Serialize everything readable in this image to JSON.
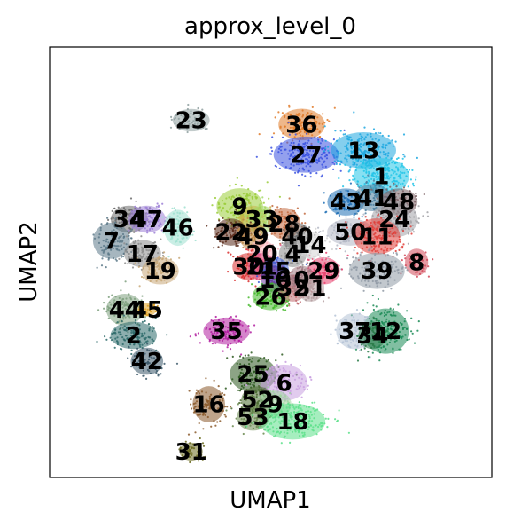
{
  "chart_data": {
    "type": "scatter",
    "title": "approx_level_0",
    "xlabel": "UMAP1",
    "ylabel": "UMAP2",
    "xlim": [
      0,
      100
    ],
    "ylim": [
      0,
      100
    ],
    "ticks": "none",
    "grid": false,
    "legend": "on data",
    "clusters": [
      {
        "label": "23",
        "x": 32,
        "y": 83,
        "color": "#8fa0a0",
        "rx": 4,
        "ry": 2.5,
        "n": 60
      },
      {
        "label": "36",
        "x": 57,
        "y": 82,
        "color": "#e07b2a",
        "rx": 5,
        "ry": 3.5,
        "n": 140
      },
      {
        "label": "27",
        "x": 58,
        "y": 75,
        "color": "#3b52e0",
        "rx": 7,
        "ry": 4,
        "n": 200
      },
      {
        "label": "13",
        "x": 71,
        "y": 76,
        "color": "#1fa8e0",
        "rx": 7,
        "ry": 4,
        "n": 220
      },
      {
        "label": "1",
        "x": 75,
        "y": 70,
        "color": "#25c6e8",
        "rx": 6,
        "ry": 4,
        "n": 220
      },
      {
        "label": "43",
        "x": 67,
        "y": 64,
        "color": "#1f6fb5",
        "rx": 4,
        "ry": 3,
        "n": 90
      },
      {
        "label": "41",
        "x": 73,
        "y": 65,
        "color": "#4d7fa0",
        "rx": 4,
        "ry": 3,
        "n": 90
      },
      {
        "label": "48",
        "x": 79,
        "y": 64,
        "color": "#7a5f63",
        "rx": 4,
        "ry": 3,
        "n": 90
      },
      {
        "label": "24",
        "x": 78,
        "y": 60,
        "color": "#a3a3a8",
        "rx": 5,
        "ry": 4,
        "n": 140
      },
      {
        "label": "50",
        "x": 68,
        "y": 57,
        "color": "#b3b7c4",
        "rx": 5,
        "ry": 3,
        "n": 120
      },
      {
        "label": "11",
        "x": 74,
        "y": 56,
        "color": "#e0403a",
        "rx": 5,
        "ry": 4,
        "n": 170
      },
      {
        "label": "8",
        "x": 83,
        "y": 50,
        "color": "#d24a5a",
        "rx": 2.5,
        "ry": 3,
        "n": 45
      },
      {
        "label": "39",
        "x": 74,
        "y": 48,
        "color": "#909aa6",
        "rx": 6,
        "ry": 4,
        "n": 150
      },
      {
        "label": "29",
        "x": 62,
        "y": 48,
        "color": "#e8426e",
        "rx": 3.5,
        "ry": 3,
        "n": 90
      },
      {
        "label": "12",
        "x": 76,
        "y": 34,
        "color": "#1a8a55",
        "rx": 5,
        "ry": 5,
        "n": 170
      },
      {
        "label": "37",
        "x": 69,
        "y": 34,
        "color": "#b5c3d6",
        "rx": 4,
        "ry": 4,
        "n": 110
      },
      {
        "label": "34",
        "x": 73,
        "y": 33,
        "color": "#2a7a48",
        "rx": 3,
        "ry": 3,
        "n": 70
      },
      {
        "label": "9",
        "x": 43,
        "y": 63,
        "color": "#9acd3a",
        "rx": 5,
        "ry": 4,
        "n": 150
      },
      {
        "label": "3",
        "x": 46,
        "y": 60,
        "color": "#c9b44a",
        "rx": 3,
        "ry": 3,
        "n": 80
      },
      {
        "label": "33",
        "x": 48,
        "y": 60,
        "color": "#a6d96a",
        "rx": 3,
        "ry": 3,
        "n": 80
      },
      {
        "label": "28",
        "x": 53,
        "y": 59,
        "color": "#c26a3f",
        "rx": 3.5,
        "ry": 3.5,
        "n": 110
      },
      {
        "label": "40",
        "x": 56,
        "y": 56,
        "color": "#6c6c6c",
        "rx": 3,
        "ry": 3,
        "n": 80
      },
      {
        "label": "22",
        "x": 41,
        "y": 57,
        "color": "#5a2a1a",
        "rx": 3.5,
        "ry": 3,
        "n": 90
      },
      {
        "label": "49",
        "x": 46,
        "y": 56,
        "color": "#c08a48",
        "rx": 3,
        "ry": 3,
        "n": 80
      },
      {
        "label": "20",
        "x": 48,
        "y": 52,
        "color": "#ffb6c1",
        "rx": 3,
        "ry": 3,
        "n": 80
      },
      {
        "label": "4",
        "x": 55,
        "y": 52,
        "color": "#8b8b8b",
        "rx": 3,
        "ry": 3,
        "n": 80
      },
      {
        "label": "14",
        "x": 59,
        "y": 54,
        "color": "#d4d4d4",
        "rx": 3,
        "ry": 3,
        "n": 80
      },
      {
        "label": "30",
        "x": 45,
        "y": 49,
        "color": "#d92b2b",
        "rx": 3.5,
        "ry": 3,
        "n": 100
      },
      {
        "label": "21",
        "x": 48,
        "y": 49,
        "color": "#e05c8e",
        "rx": 3,
        "ry": 3,
        "n": 80
      },
      {
        "label": "15",
        "x": 51,
        "y": 48,
        "color": "#3d5ed6",
        "rx": 3,
        "ry": 3,
        "n": 80
      },
      {
        "label": "10",
        "x": 51,
        "y": 46,
        "color": "#6a3d9a",
        "rx": 3,
        "ry": 3,
        "n": 80
      },
      {
        "label": "26",
        "x": 50,
        "y": 42,
        "color": "#44b82a",
        "rx": 4,
        "ry": 3,
        "n": 120
      },
      {
        "label": "32",
        "x": 55,
        "y": 44,
        "color": "#c06a70",
        "rx": 3,
        "ry": 3,
        "n": 80
      },
      {
        "label": "0",
        "x": 57,
        "y": 46,
        "color": "#a07a82",
        "rx": 3,
        "ry": 3,
        "n": 80
      },
      {
        "label": "51",
        "x": 59,
        "y": 44,
        "color": "#b49ea0",
        "rx": 3,
        "ry": 3,
        "n": 80
      },
      {
        "label": "34",
        "x": 18,
        "y": 60,
        "color": "#6b6b6b",
        "rx": 4,
        "ry": 3,
        "n": 100
      },
      {
        "label": "47",
        "x": 22,
        "y": 60,
        "color": "#9c7fd6",
        "rx": 4,
        "ry": 3,
        "n": 100
      },
      {
        "label": "46",
        "x": 29,
        "y": 58,
        "color": "#9fe0d0",
        "rx": 3,
        "ry": 4,
        "n": 100
      },
      {
        "label": "7",
        "x": 14,
        "y": 55,
        "color": "#5d7a8a",
        "rx": 4,
        "ry": 4,
        "n": 110
      },
      {
        "label": "17",
        "x": 21,
        "y": 52,
        "color": "#8d8d8d",
        "rx": 4,
        "ry": 3,
        "n": 100
      },
      {
        "label": "19",
        "x": 25,
        "y": 48,
        "color": "#c8a878",
        "rx": 4,
        "ry": 3,
        "n": 100
      },
      {
        "label": "44",
        "x": 17,
        "y": 39,
        "color": "#7ea07e",
        "rx": 4,
        "ry": 3.5,
        "n": 110
      },
      {
        "label": "45",
        "x": 22,
        "y": 39,
        "color": "#e0a020",
        "rx": 2,
        "ry": 1.5,
        "n": 25
      },
      {
        "label": "2",
        "x": 19,
        "y": 33,
        "color": "#2e6b6b",
        "rx": 5,
        "ry": 3,
        "n": 130
      },
      {
        "label": "42",
        "x": 22,
        "y": 27,
        "color": "#3d5a6b",
        "rx": 3.5,
        "ry": 3,
        "n": 80
      },
      {
        "label": "35",
        "x": 40,
        "y": 34,
        "color": "#b21fa0",
        "rx": 5,
        "ry": 3,
        "n": 120
      },
      {
        "label": "25",
        "x": 46,
        "y": 24,
        "color": "#2d5a20",
        "rx": 5,
        "ry": 4,
        "n": 130
      },
      {
        "label": "6",
        "x": 53,
        "y": 22,
        "color": "#c9a0e0",
        "rx": 5,
        "ry": 4,
        "n": 130
      },
      {
        "label": "52",
        "x": 47,
        "y": 18,
        "color": "#4a6b30",
        "rx": 3.5,
        "ry": 3,
        "n": 80
      },
      {
        "label": "9",
        "x": 51,
        "y": 17,
        "color": "#a0d4a0",
        "rx": 3.5,
        "ry": 3,
        "n": 80
      },
      {
        "label": "53",
        "x": 46,
        "y": 14,
        "color": "#6b8a50",
        "rx": 3.5,
        "ry": 3,
        "n": 80
      },
      {
        "label": "18",
        "x": 55,
        "y": 13,
        "color": "#5ce08a",
        "rx": 7,
        "ry": 4,
        "n": 220
      },
      {
        "label": "16",
        "x": 36,
        "y": 17,
        "color": "#8b5a2b",
        "rx": 3.5,
        "ry": 4,
        "n": 100
      },
      {
        "label": "31",
        "x": 32,
        "y": 6,
        "color": "#6b6b20",
        "rx": 2.5,
        "ry": 2,
        "n": 50
      }
    ]
  }
}
